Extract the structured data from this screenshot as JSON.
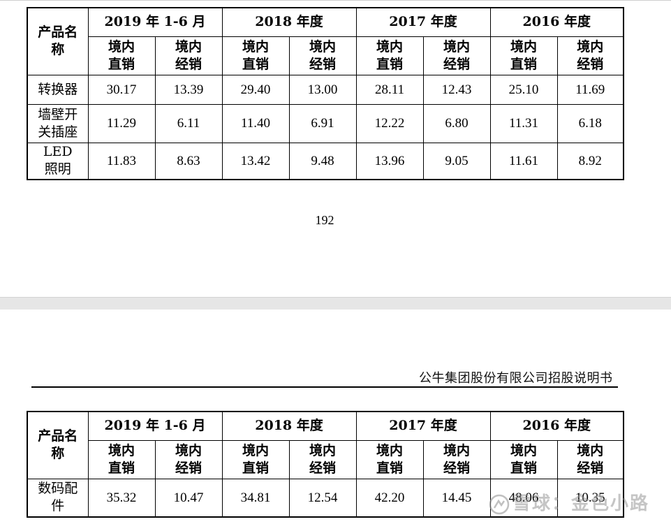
{
  "top_table": {
    "product_header": "产品名称",
    "periods": [
      "2019 年 1-6 月",
      "2018 年度",
      "2017 年度",
      "2016 年度"
    ],
    "sub_headers": [
      "境内直销",
      "境内经销"
    ],
    "rows": [
      {
        "name": "转换器",
        "values": [
          "30.17",
          "13.39",
          "29.40",
          "13.00",
          "28.11",
          "12.43",
          "25.10",
          "11.69"
        ]
      },
      {
        "name": "墙壁开关插座",
        "values": [
          "11.29",
          "6.11",
          "11.40",
          "6.91",
          "12.22",
          "6.80",
          "11.31",
          "6.18"
        ]
      },
      {
        "name": "LED照明",
        "values": [
          "11.83",
          "8.63",
          "13.42",
          "9.48",
          "13.96",
          "9.05",
          "11.61",
          "8.92"
        ]
      }
    ]
  },
  "page_number": "192",
  "doc_header": "公牛集团股份有限公司招股说明书",
  "bottom_table": {
    "product_header": "产品名称",
    "periods": [
      "2019 年 1-6 月",
      "2018 年度",
      "2017 年度",
      "2016 年度"
    ],
    "sub_headers": [
      "境内直销",
      "境内经销"
    ],
    "rows": [
      {
        "name": "数码配件",
        "values": [
          "35.32",
          "10.47",
          "34.81",
          "12.54",
          "42.20",
          "14.45",
          "48.06",
          "10.35"
        ]
      }
    ]
  },
  "watermark": "雪球：金色小路"
}
